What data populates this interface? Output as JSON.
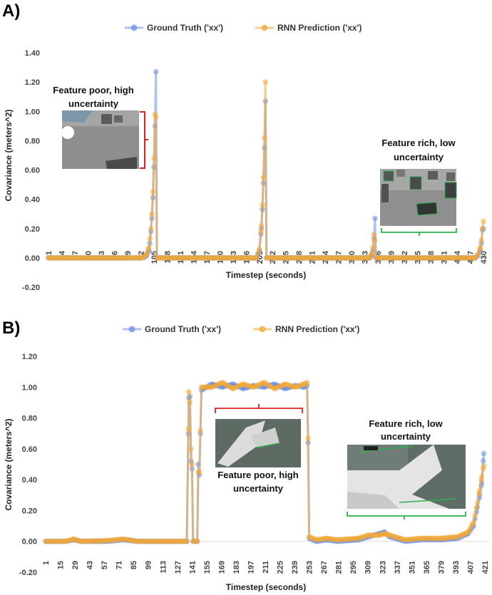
{
  "colors": {
    "ground_truth": "#6f8fe0",
    "prediction": "#f0a838",
    "bracket_red": "#e02020",
    "bracket_green": "#2cb04a"
  },
  "chart_data": [
    {
      "panel": "A)",
      "type": "line",
      "xlabel": "Timestep (seconds)",
      "ylabel": "Covariance (meters^2)",
      "ylim": [
        -0.2,
        1.4
      ],
      "yticks": [
        "-0.20",
        "0.00",
        "0.20",
        "0.40",
        "0.60",
        "0.80",
        "1.00",
        "1.20",
        "1.40"
      ],
      "xrange": [
        1,
        430
      ],
      "xticks": [
        1,
        14,
        27,
        40,
        53,
        66,
        79,
        92,
        105,
        118,
        131,
        144,
        157,
        170,
        183,
        196,
        209,
        222,
        235,
        248,
        261,
        274,
        287,
        300,
        313,
        326,
        339,
        352,
        365,
        378,
        391,
        404,
        417,
        430
      ],
      "series": [
        {
          "name": "Ground Truth ('xx')",
          "color": "ground_truth",
          "points": [
            [
              1,
              0
            ],
            [
              92,
              0
            ],
            [
              96,
              0.005
            ],
            [
              98,
              0.02
            ],
            [
              100,
              0.05
            ],
            [
              101,
              0.1
            ],
            [
              102,
              0.18
            ],
            [
              103,
              0.27
            ],
            [
              104,
              0.41
            ],
            [
              105,
              0.62
            ],
            [
              106,
              0.9
            ],
            [
              107,
              1.27
            ],
            [
              108,
              0
            ],
            [
              206,
              0
            ],
            [
              209,
              0.05
            ],
            [
              211,
              0.2
            ],
            [
              212,
              0.33
            ],
            [
              213,
              0.51
            ],
            [
              214,
              0.75
            ],
            [
              215,
              1.07
            ],
            [
              216,
              0
            ],
            [
              318,
              0
            ],
            [
              320,
              0.02
            ],
            [
              321,
              0.05
            ],
            [
              322,
              0.13
            ],
            [
              323,
              0.27
            ],
            [
              324,
              0
            ],
            [
              422,
              0
            ],
            [
              425,
              0.02
            ],
            [
              427,
              0.05
            ],
            [
              428,
              0.1
            ],
            [
              429,
              0.19
            ],
            [
              430,
              0.2
            ]
          ]
        },
        {
          "name": "RNN Prediction ('xx')",
          "color": "prediction",
          "points": [
            [
              1,
              0
            ],
            [
              92,
              0
            ],
            [
              96,
              0.008
            ],
            [
              98,
              0.03
            ],
            [
              100,
              0.07
            ],
            [
              101,
              0.13
            ],
            [
              102,
              0.2
            ],
            [
              103,
              0.3
            ],
            [
              104,
              0.45
            ],
            [
              105,
              0.68
            ],
            [
              106,
              0.98
            ],
            [
              107,
              0.96
            ],
            [
              108,
              0
            ],
            [
              206,
              0
            ],
            [
              209,
              0.06
            ],
            [
              211,
              0.22
            ],
            [
              212,
              0.36
            ],
            [
              213,
              0.55
            ],
            [
              214,
              0.82
            ],
            [
              215,
              1.2
            ],
            [
              216,
              0
            ],
            [
              318,
              0
            ],
            [
              320,
              0.03
            ],
            [
              321,
              0.07
            ],
            [
              322,
              0.16
            ],
            [
              323,
              0.12
            ],
            [
              324,
              0
            ],
            [
              422,
              0
            ],
            [
              425,
              0.03
            ],
            [
              427,
              0.07
            ],
            [
              428,
              0.12
            ],
            [
              429,
              0.2
            ],
            [
              430,
              0.25
            ]
          ]
        }
      ],
      "annotations": [
        {
          "lines": [
            "Feature poor, high",
            "uncertainty"
          ]
        },
        {
          "lines": [
            "Feature rich, low",
            "uncertainty"
          ]
        }
      ]
    },
    {
      "panel": "B)",
      "type": "line",
      "xlabel": "Timestep (seconds)",
      "ylabel": "Covariance (meters^2)",
      "ylim": [
        -0.2,
        1.2
      ],
      "yticks": [
        "-0.20",
        "0.00",
        "0.20",
        "0.40",
        "0.60",
        "0.80",
        "1.00",
        "1.20"
      ],
      "xrange": [
        1,
        421
      ],
      "xticks": [
        1,
        15,
        29,
        43,
        57,
        71,
        85,
        99,
        113,
        127,
        141,
        155,
        169,
        183,
        197,
        211,
        225,
        239,
        253,
        267,
        281,
        295,
        309,
        323,
        337,
        351,
        365,
        379,
        393,
        407,
        421
      ],
      "series": [
        {
          "name": "Ground Truth ('xx')",
          "color": "ground_truth",
          "points": [
            [
              1,
              0
            ],
            [
              20,
              0
            ],
            [
              28,
              0.01
            ],
            [
              35,
              0
            ],
            [
              60,
              0
            ],
            [
              75,
              0.01
            ],
            [
              90,
              0
            ],
            [
              136,
              0
            ],
            [
              138,
              0.93
            ],
            [
              139,
              0.94
            ],
            [
              140,
              0.52
            ],
            [
              141,
              0.47
            ],
            [
              142,
              0
            ],
            [
              146,
              0
            ],
            [
              147,
              0.5
            ],
            [
              148,
              0.43
            ],
            [
              149,
              0.7
            ],
            [
              150,
              0.98
            ],
            [
              160,
              1.02
            ],
            [
              170,
              1.0
            ],
            [
              180,
              1.02
            ],
            [
              190,
              0.99
            ],
            [
              200,
              1.01
            ],
            [
              210,
              1.0
            ],
            [
              220,
              1.02
            ],
            [
              230,
              0.99
            ],
            [
              240,
              1.01
            ],
            [
              248,
              1.0
            ],
            [
              251,
              1.01
            ],
            [
              252,
              0.64
            ],
            [
              253,
              0.02
            ],
            [
              260,
              0
            ],
            [
              270,
              0.01
            ],
            [
              280,
              0
            ],
            [
              300,
              0.01
            ],
            [
              310,
              0.03
            ],
            [
              320,
              0.05
            ],
            [
              325,
              0.06
            ],
            [
              330,
              0.03
            ],
            [
              345,
              0
            ],
            [
              360,
              0.01
            ],
            [
              380,
              0.01
            ],
            [
              395,
              0.02
            ],
            [
              405,
              0.05
            ],
            [
              410,
              0.1
            ],
            [
              414,
              0.22
            ],
            [
              416,
              0.3
            ],
            [
              418,
              0.38
            ],
            [
              420,
              0.57
            ]
          ]
        },
        {
          "name": "RNN Prediction ('xx')",
          "color": "prediction",
          "points": [
            [
              1,
              0
            ],
            [
              20,
              0
            ],
            [
              28,
              0.015
            ],
            [
              35,
              0
            ],
            [
              60,
              0.005
            ],
            [
              75,
              0.015
            ],
            [
              90,
              0
            ],
            [
              136,
              0
            ],
            [
              138,
              0.97
            ],
            [
              139,
              0.9
            ],
            [
              140,
              0.6
            ],
            [
              141,
              0.5
            ],
            [
              142,
              0
            ],
            [
              146,
              0
            ],
            [
              147,
              0.45
            ],
            [
              148,
              0.45
            ],
            [
              149,
              0.72
            ],
            [
              150,
              1.0
            ],
            [
              160,
              1.0
            ],
            [
              170,
              1.03
            ],
            [
              180,
              0.99
            ],
            [
              190,
              1.02
            ],
            [
              200,
              1.0
            ],
            [
              210,
              1.03
            ],
            [
              220,
              0.99
            ],
            [
              230,
              1.02
            ],
            [
              240,
              1.0
            ],
            [
              248,
              1.02
            ],
            [
              251,
              1.03
            ],
            [
              252,
              0.67
            ],
            [
              253,
              0.03
            ],
            [
              260,
              0.01
            ],
            [
              270,
              0.02
            ],
            [
              280,
              0.01
            ],
            [
              300,
              0.02
            ],
            [
              310,
              0.04
            ],
            [
              320,
              0.04
            ],
            [
              325,
              0.05
            ],
            [
              330,
              0.04
            ],
            [
              345,
              0.01
            ],
            [
              360,
              0.02
            ],
            [
              380,
              0.02
            ],
            [
              395,
              0.03
            ],
            [
              405,
              0.06
            ],
            [
              410,
              0.12
            ],
            [
              414,
              0.25
            ],
            [
              416,
              0.33
            ],
            [
              418,
              0.42
            ],
            [
              420,
              0.49
            ]
          ]
        }
      ],
      "annotations": [
        {
          "lines": [
            "Feature poor, high",
            "uncertainty"
          ]
        },
        {
          "lines": [
            "Feature rich, low",
            "uncertainty"
          ]
        }
      ]
    }
  ]
}
